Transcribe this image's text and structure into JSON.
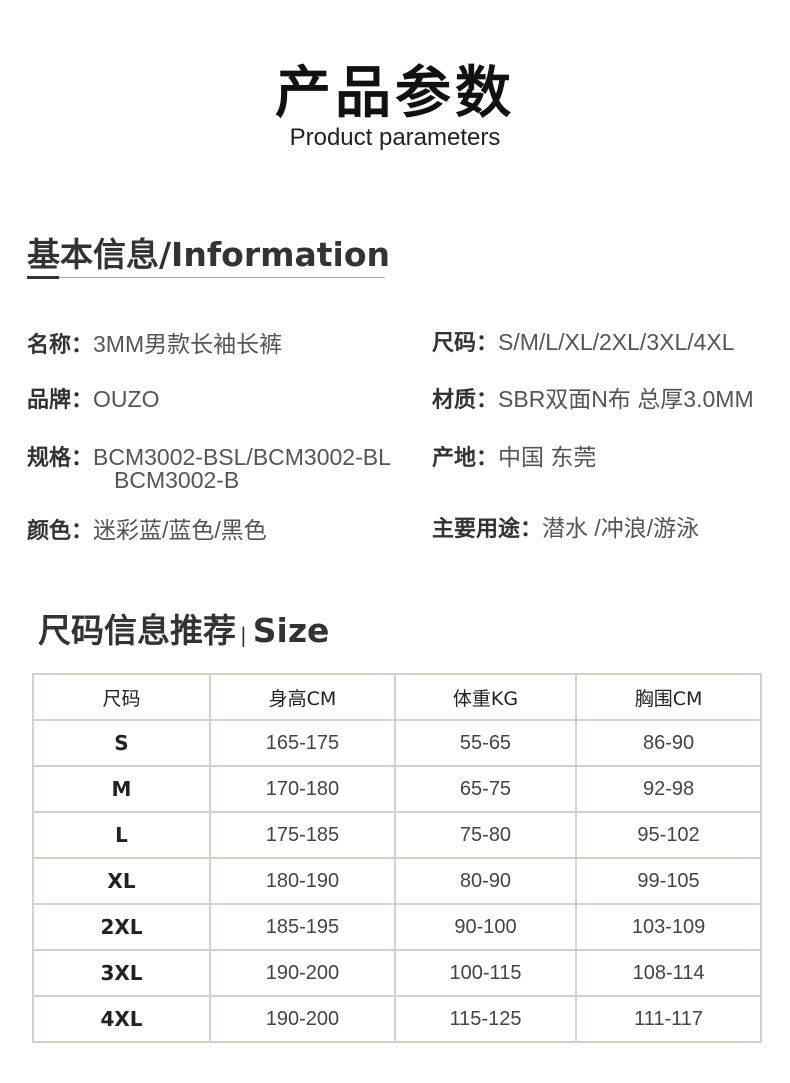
{
  "title": "产品参数",
  "subtitle": "Product parameters",
  "info": {
    "heading": "基本信息/Information",
    "left": [
      {
        "key": "名称：",
        "value": "3MM男款长袖长裤"
      },
      {
        "key": "品牌：",
        "value": "OUZO"
      },
      {
        "key": "规格：",
        "value": "BCM3002-BSL/BCM3002-BL",
        "value2": "BCM3002-B"
      },
      {
        "key": "颜色：",
        "value": "迷彩蓝/蓝色/黑色"
      }
    ],
    "right": [
      {
        "key": "尺码：",
        "value": "S/M/L/XL/2XL/3XL/4XL"
      },
      {
        "key": "材质：",
        "value": "SBR双面N布 总厚3.0MM"
      },
      {
        "key": "产地：",
        "value": "中国 东莞"
      },
      {
        "key": "主要用途：",
        "value": "潜水 /冲浪/游泳"
      }
    ]
  },
  "size": {
    "heading": "尺码信息推荐",
    "separator": "|",
    "heading_en": "Size",
    "columns": [
      "尺码",
      "身高CM",
      "体重KG",
      "胸围CM"
    ],
    "rows": [
      [
        "S",
        "165-175",
        "55-65",
        "86-90"
      ],
      [
        "M",
        "170-180",
        "65-75",
        "92-98"
      ],
      [
        "L",
        "175-185",
        "75-80",
        "95-102"
      ],
      [
        "XL",
        "180-190",
        "80-90",
        "99-105"
      ],
      [
        "2XL",
        "185-195",
        "90-100",
        "103-109"
      ],
      [
        "3XL",
        "190-200",
        "100-115",
        "108-114"
      ],
      [
        "4XL",
        "190-200",
        "115-125",
        "111-117"
      ]
    ]
  }
}
